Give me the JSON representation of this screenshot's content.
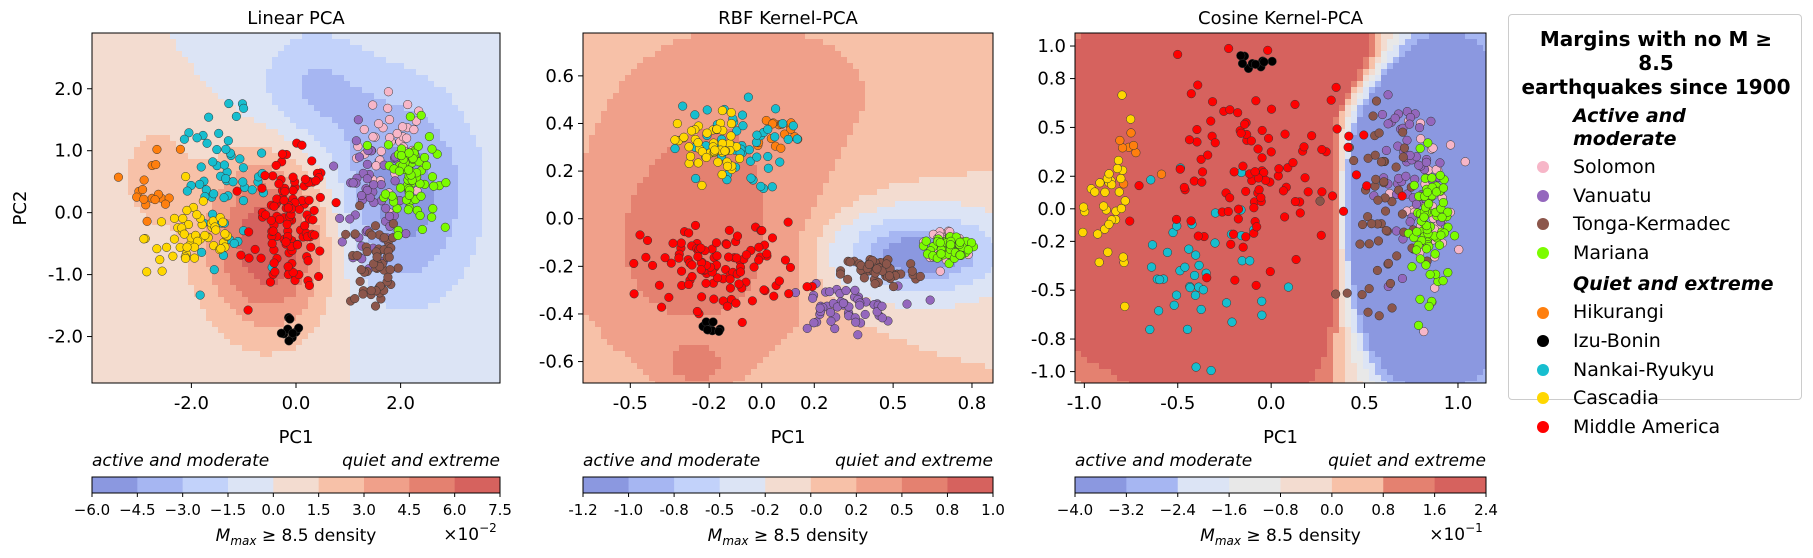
{
  "chart_data": [
    {
      "type": "scatter",
      "title": "Linear PCA",
      "xlabel": "PC1",
      "ylabel": "PC2",
      "xlim": [
        -3.9,
        3.9
      ],
      "ylim": [
        -2.75,
        2.9
      ],
      "xticks": [
        -2.0,
        0.0,
        2.0
      ],
      "yticks": [
        -2.0,
        -1.0,
        0.0,
        1.0,
        2.0
      ],
      "xtick_labels": [
        "-2.0",
        "0.0",
        "2.0"
      ],
      "ytick_labels": [
        "-2.0",
        "-1.0",
        "0.0",
        "1.0",
        "2.0"
      ],
      "colorbar": {
        "label": "M_max ≥ 8.5 density",
        "left_label": "active and moderate",
        "right_label": "quiet and extreme",
        "levels": [
          -6.0,
          -4.5,
          -3.0,
          -1.5,
          0.0,
          1.5,
          3.0,
          4.5,
          6.0,
          7.5
        ],
        "tick_labels": [
          "−6.0",
          "−4.5",
          "−3.0",
          "−1.5",
          "0.0",
          "1.5",
          "3.0",
          "4.5",
          "6.0",
          "7.5"
        ],
        "multiplier": "×10",
        "exponent": "−2"
      },
      "clusters": [
        {
          "region": "Solomon",
          "cx": 1.9,
          "cy": 1.1,
          "sx": 0.6,
          "sy": 0.7,
          "n": 40
        },
        {
          "region": "Vanuatu",
          "cx": 1.4,
          "cy": 0.0,
          "sx": 0.55,
          "sy": 1.0,
          "n": 55
        },
        {
          "region": "Tonga-Kermadec",
          "cx": 1.5,
          "cy": -0.8,
          "sx": 0.4,
          "sy": 0.7,
          "n": 55
        },
        {
          "region": "Mariana",
          "cx": 2.2,
          "cy": 0.6,
          "sx": 0.4,
          "sy": 0.7,
          "n": 80
        },
        {
          "region": "Hikurangi",
          "cx": -2.7,
          "cy": 0.5,
          "sx": 0.4,
          "sy": 0.5,
          "n": 18
        },
        {
          "region": "Izu-Bonin",
          "cx": -0.1,
          "cy": -1.9,
          "sx": 0.15,
          "sy": 0.2,
          "n": 10
        },
        {
          "region": "Nankai-Ryukyu",
          "cx": -1.4,
          "cy": 0.5,
          "sx": 0.7,
          "sy": 0.9,
          "n": 60
        },
        {
          "region": "Cascadia",
          "cx": -1.9,
          "cy": -0.4,
          "sx": 0.8,
          "sy": 0.5,
          "n": 55
        },
        {
          "region": "Middle America",
          "cx": -0.1,
          "cy": -0.2,
          "sx": 0.6,
          "sy": 0.9,
          "n": 120
        }
      ],
      "density_bumps": [
        {
          "x": -0.5,
          "y": -0.5,
          "sx": 0.9,
          "sy": 1.0,
          "a": 0.075
        },
        {
          "x": 2.0,
          "y": 0.3,
          "sx": 1.0,
          "sy": 1.2,
          "a": -0.055
        },
        {
          "x": 0.3,
          "y": 2.0,
          "sx": 0.8,
          "sy": 0.7,
          "a": -0.03
        },
        {
          "x": -2.7,
          "y": 0.6,
          "sx": 0.5,
          "sy": 0.6,
          "a": 0.025
        }
      ]
    },
    {
      "type": "scatter",
      "title": "RBF Kernel-PCA",
      "xlabel": "PC1",
      "xlim": [
        -0.68,
        0.88
      ],
      "ylim": [
        -0.69,
        0.78
      ],
      "xticks": [
        -0.5,
        -0.2,
        0.0,
        0.2,
        0.5,
        0.8
      ],
      "yticks": [
        -0.6,
        -0.4,
        -0.2,
        0.0,
        0.2,
        0.4,
        0.6
      ],
      "xtick_labels": [
        "-0.5",
        "-0.2",
        "0.0",
        "0.2",
        "0.5",
        "0.8"
      ],
      "ytick_labels": [
        "-0.6",
        "-0.4",
        "-0.2",
        "0.0",
        "0.2",
        "0.4",
        "0.6"
      ],
      "colorbar": {
        "label": "M_max ≥ 8.5 density",
        "left_label": "active and moderate",
        "right_label": "quiet and extreme",
        "levels": [
          -1.2,
          -1.0,
          -0.8,
          -0.5,
          -0.2,
          0.0,
          0.2,
          0.5,
          0.8,
          1.0
        ],
        "tick_labels": [
          "-1.2",
          "-1.0",
          "-0.8",
          "-0.5",
          "-0.2",
          "0.0",
          "0.2",
          "0.5",
          "0.8",
          "1.0"
        ],
        "multiplier": "",
        "exponent": ""
      },
      "clusters": [
        {
          "region": "Solomon",
          "cx": 0.7,
          "cy": -0.1,
          "sx": 0.06,
          "sy": 0.05,
          "n": 40
        },
        {
          "region": "Vanuatu",
          "cx": 0.3,
          "cy": -0.38,
          "sx": 0.18,
          "sy": 0.08,
          "n": 55
        },
        {
          "region": "Tonga-Kermadec",
          "cx": 0.45,
          "cy": -0.22,
          "sx": 0.12,
          "sy": 0.06,
          "n": 60
        },
        {
          "region": "Mariana",
          "cx": 0.72,
          "cy": -0.12,
          "sx": 0.06,
          "sy": 0.04,
          "n": 80
        },
        {
          "region": "Hikurangi",
          "cx": 0.05,
          "cy": 0.35,
          "sx": 0.1,
          "sy": 0.08,
          "n": 16
        },
        {
          "region": "Izu-Bonin",
          "cx": -0.2,
          "cy": -0.45,
          "sx": 0.06,
          "sy": 0.04,
          "n": 10
        },
        {
          "region": "Nankai-Ryukyu",
          "cx": -0.12,
          "cy": 0.3,
          "sx": 0.18,
          "sy": 0.15,
          "n": 55
        },
        {
          "region": "Cascadia",
          "cx": -0.2,
          "cy": 0.3,
          "sx": 0.1,
          "sy": 0.12,
          "n": 50
        },
        {
          "region": "Middle America",
          "cx": -0.15,
          "cy": -0.2,
          "sx": 0.25,
          "sy": 0.15,
          "n": 110
        }
      ],
      "density_bumps": [
        {
          "x": -0.25,
          "y": -0.1,
          "sx": 0.3,
          "sy": 0.35,
          "a": 0.75
        },
        {
          "x": 0.6,
          "y": -0.15,
          "sx": 0.22,
          "sy": 0.12,
          "a": -1.25
        },
        {
          "x": 0.0,
          "y": 0.55,
          "sx": 0.4,
          "sy": 0.25,
          "a": 0.3
        },
        {
          "x": -0.25,
          "y": -0.62,
          "sx": 0.08,
          "sy": 0.06,
          "a": 0.5
        }
      ]
    },
    {
      "type": "scatter",
      "title": "Cosine Kernel-PCA",
      "xlabel": "PC1",
      "xlim": [
        -1.05,
        1.15
      ],
      "ylim": [
        -1.07,
        1.08
      ],
      "xticks": [
        -1.0,
        -0.5,
        0.0,
        0.5,
        1.0
      ],
      "yticks": [
        -1.0,
        -0.8,
        -0.5,
        -0.2,
        0.0,
        0.2,
        0.5,
        0.8,
        1.0
      ],
      "xtick_labels": [
        "-1.0",
        "-0.5",
        "0.0",
        "0.5",
        "1.0"
      ],
      "ytick_labels": [
        "-1.0",
        "-0.8",
        "-0.5",
        "-0.2",
        "0.0",
        "0.2",
        "0.5",
        "0.8",
        "1.0"
      ],
      "colorbar": {
        "label": "M_max ≥ 8.5 density",
        "left_label": "active and moderate",
        "right_label": "quiet and extreme",
        "levels": [
          -4.0,
          -3.2,
          -2.4,
          -1.6,
          -0.8,
          0.0,
          0.8,
          1.6,
          2.4
        ],
        "tick_labels": [
          "−4.0",
          "−3.2",
          "−2.4",
          "−1.6",
          "−0.8",
          "0.0",
          "0.8",
          "1.6",
          "2.4"
        ],
        "multiplier": "×10",
        "exponent": "−1"
      },
      "clusters": [
        {
          "region": "Solomon",
          "cx": 0.85,
          "cy": 0.0,
          "sx": 0.12,
          "sy": 0.4,
          "n": 45
        },
        {
          "region": "Vanuatu",
          "cx": 0.75,
          "cy": 0.2,
          "sx": 0.15,
          "sy": 0.4,
          "n": 55
        },
        {
          "region": "Tonga-Kermadec",
          "cx": 0.6,
          "cy": 0.0,
          "sx": 0.15,
          "sy": 0.5,
          "n": 55
        },
        {
          "region": "Mariana",
          "cx": 0.85,
          "cy": -0.1,
          "sx": 0.08,
          "sy": 0.35,
          "n": 80
        },
        {
          "region": "Hikurangi",
          "cx": -0.75,
          "cy": 0.3,
          "sx": 0.1,
          "sy": 0.2,
          "n": 8
        },
        {
          "region": "Izu-Bonin",
          "cx": -0.1,
          "cy": 0.9,
          "sx": 0.1,
          "sy": 0.06,
          "n": 10
        },
        {
          "region": "Nankai-Ryukyu",
          "cx": -0.4,
          "cy": -0.4,
          "sx": 0.35,
          "sy": 0.4,
          "n": 45
        },
        {
          "region": "Cascadia",
          "cx": -0.85,
          "cy": 0.0,
          "sx": 0.1,
          "sy": 0.4,
          "n": 35
        },
        {
          "region": "Middle America",
          "cx": -0.1,
          "cy": 0.2,
          "sx": 0.45,
          "sy": 0.5,
          "n": 110
        }
      ],
      "density_bumps": [
        {
          "x": -0.9,
          "y": 0.1,
          "sx": 0.25,
          "sy": 0.35,
          "a": 2.6
        },
        {
          "x": -0.2,
          "y": 0.0,
          "sx": 0.5,
          "sy": 0.6,
          "a": 1.4
        },
        {
          "x": 0.85,
          "y": 0.0,
          "sx": 0.3,
          "sy": 0.55,
          "a": -2.8
        },
        {
          "x": 0.0,
          "y": 0.95,
          "sx": 0.4,
          "sy": 0.2,
          "a": 0.8
        }
      ]
    }
  ],
  "legend": {
    "title_line1": "Margins with no M ≥ 8.5",
    "title_line2": "earthquakes since 1900",
    "groups": [
      {
        "label": "Active and moderate",
        "items": [
          {
            "name": "Solomon",
            "color": "#f7b6c8"
          },
          {
            "name": "Vanuatu",
            "color": "#9467bd"
          },
          {
            "name": "Tonga-Kermadec",
            "color": "#8c564b"
          },
          {
            "name": "Mariana",
            "color": "#7cfc00"
          }
        ]
      },
      {
        "label": "Quiet and extreme",
        "items": [
          {
            "name": "Hikurangi",
            "color": "#ff7f0e"
          },
          {
            "name": "Izu-Bonin",
            "color": "#000000"
          },
          {
            "name": "Nankai-Ryukyu",
            "color": "#17becf"
          },
          {
            "name": "Cascadia",
            "color": "#ffd700"
          },
          {
            "name": "Middle America",
            "color": "#ff0000"
          }
        ]
      }
    ]
  },
  "colormap": [
    "#8b98e0",
    "#a6b6f2",
    "#c2d2fa",
    "#dce4f5",
    "#e8e8e8",
    "#f3dcd0",
    "#f7c1a8",
    "#f0a08a",
    "#e48170",
    "#d6625e"
  ]
}
